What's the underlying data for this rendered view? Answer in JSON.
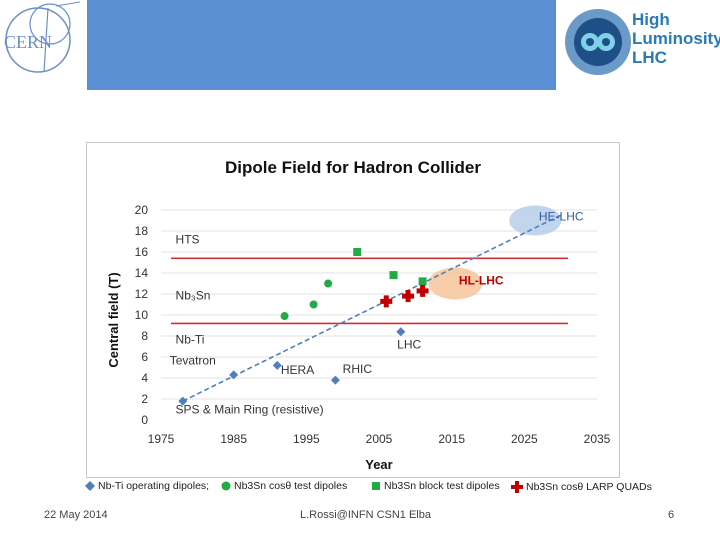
{
  "header": {
    "cern_logo_text": "CERN",
    "hl_logo_line1": "High",
    "hl_logo_line2": "Luminosity",
    "hl_logo_line3": "LHC"
  },
  "chart_data": {
    "type": "scatter",
    "title": "Dipole Field for Hadron Collider",
    "xlabel": "Year",
    "ylabel": "Central field (T)",
    "xlim": [
      1975,
      2035
    ],
    "ylim": [
      0,
      20
    ],
    "x_ticks": [
      1975,
      1985,
      1995,
      2005,
      2015,
      2025,
      2035
    ],
    "y_ticks": [
      0,
      2,
      4,
      6,
      8,
      10,
      12,
      14,
      16,
      18,
      20
    ],
    "grid": "horizontal",
    "series": [
      {
        "name": "Nb-Ti operating dipoles;",
        "marker": "diamond",
        "color": "#4f7fbd",
        "points": [
          {
            "x": 1978,
            "y": 1.8
          },
          {
            "x": 1985,
            "y": 4.3
          },
          {
            "x": 1991,
            "y": 5.2
          },
          {
            "x": 1999,
            "y": 3.8
          },
          {
            "x": 2008,
            "y": 8.4
          }
        ]
      },
      {
        "name": "Nb3Sn cosθ test dipoles",
        "marker": "circle",
        "color": "#22aa44",
        "points": [
          {
            "x": 1992,
            "y": 9.9
          },
          {
            "x": 1996,
            "y": 11.0
          },
          {
            "x": 1998,
            "y": 13.0
          }
        ]
      },
      {
        "name": "Nb3Sn block test dipoles",
        "marker": "square",
        "color": "#22aa44",
        "points": [
          {
            "x": 2002,
            "y": 16.0
          },
          {
            "x": 2007,
            "y": 13.8
          },
          {
            "x": 2011,
            "y": 13.2
          }
        ]
      },
      {
        "name": "Nb3Sn cosθ LARP QUADs",
        "marker": "cross",
        "color": "#c00000",
        "points": [
          {
            "x": 2006,
            "y": 11.3
          },
          {
            "x": 2009,
            "y": 11.8
          },
          {
            "x": 2011,
            "y": 12.3
          }
        ]
      }
    ],
    "annotations": [
      {
        "text": "HTS",
        "x": 1977,
        "y": 16.8
      },
      {
        "text": "Nb₃Sn",
        "x": 1977,
        "y": 11.5
      },
      {
        "text": "Nb-Ti",
        "x": 1977,
        "y": 7.3
      },
      {
        "text": "Tevatron",
        "x": 1976.2,
        "y": 5.3
      },
      {
        "text": "HERA",
        "x": 1991.5,
        "y": 4.4
      },
      {
        "text": "RHIC",
        "x": 2000,
        "y": 4.5
      },
      {
        "text": "LHC",
        "x": 2007.5,
        "y": 6.8
      },
      {
        "text": "SPS & Main Ring (resistive)",
        "x": 1977,
        "y": 0.6
      },
      {
        "text": "HL-LHC",
        "x": 2016,
        "y": 12.9
      },
      {
        "text": "HE-LHC",
        "x": 2027,
        "y": 19.0
      }
    ],
    "ref_lines": [
      {
        "y": 15.4,
        "x_range": [
          1975,
          2031
        ],
        "color": "#d03030"
      },
      {
        "y": 9.2,
        "x_range": [
          1975,
          2031
        ],
        "color": "#d03030"
      }
    ],
    "trend_line": {
      "from": [
        1978,
        1.8
      ],
      "to": [
        2030,
        19.5
      ],
      "color": "#4f7fbd"
    },
    "highlights": [
      {
        "label": "HL-LHC",
        "center": [
          2015.5,
          13.0
        ],
        "color": "#f6c59a"
      },
      {
        "label": "HE-LHC",
        "center": [
          2026.5,
          19.0
        ],
        "color": "#b8cdea"
      }
    ]
  },
  "footer": {
    "date": "22 May 2014",
    "author": "L.Rossi@INFN CSN1 Elba",
    "page": "6"
  }
}
